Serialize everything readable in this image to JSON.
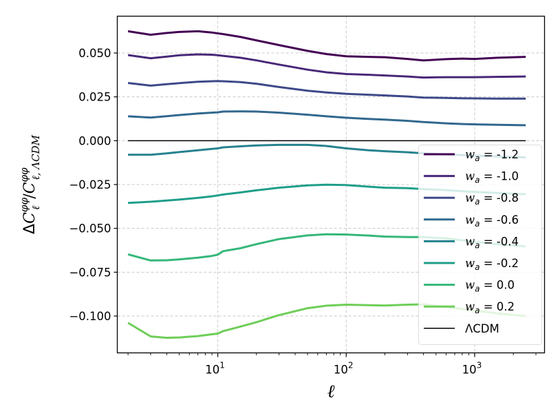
{
  "chart_data": {
    "type": "line",
    "title": "",
    "xlabel": "ℓ",
    "ylabel": "ΔC_ℓ^{φφ}/C_{ℓ,ΛCDM}^{φφ}",
    "ylabel_parts": {
      "delta": "Δ",
      "c1": "C",
      "sup1": "φφ",
      "sub1": "ℓ",
      "slash": "/",
      "c2": "C",
      "sup2": "φφ",
      "sub2": "ℓ, ΛCDM"
    },
    "xscale": "log",
    "xlim": [
      1.65,
      3500
    ],
    "ylim": [
      -0.121,
      0.071
    ],
    "grid": true,
    "legend_position": "lower-right",
    "x_ticks": [
      {
        "value": 10,
        "base": "10",
        "exp": "1"
      },
      {
        "value": 100,
        "base": "10",
        "exp": "2"
      },
      {
        "value": 1000,
        "base": "10",
        "exp": "3"
      }
    ],
    "y_ticks": [
      {
        "value": 0.05,
        "label": "0.050"
      },
      {
        "value": 0.025,
        "label": "0.025"
      },
      {
        "value": 0.0,
        "label": "0.000"
      },
      {
        "value": -0.025,
        "label": "−0.025"
      },
      {
        "value": -0.05,
        "label": "−0.050"
      },
      {
        "value": -0.075,
        "label": "−0.075"
      },
      {
        "value": -0.1,
        "label": "−0.100"
      }
    ],
    "x": [
      2,
      3,
      4,
      5,
      7,
      9,
      10,
      11,
      15,
      20,
      30,
      50,
      70,
      100,
      150,
      200,
      300,
      400,
      600,
      800,
      1000,
      1500,
      2500
    ],
    "series": [
      {
        "name": "w_a = -1.2",
        "label_prefix": "w",
        "label_sub": "a",
        "label_value": " = -1.2",
        "color": "#440154",
        "values": [
          0.0624,
          0.0604,
          0.0614,
          0.062,
          0.0624,
          0.0617,
          0.0612,
          0.0608,
          0.0592,
          0.0572,
          0.0545,
          0.0512,
          0.0494,
          0.0481,
          0.0478,
          0.0476,
          0.0466,
          0.0458,
          0.0465,
          0.0468,
          0.0466,
          0.0473,
          0.0478
        ]
      },
      {
        "name": "w_a = -1.0",
        "label_prefix": "w",
        "label_sub": "a",
        "label_value": " = -1.0",
        "color": "#482878",
        "values": [
          0.0488,
          0.047,
          0.0479,
          0.0487,
          0.0492,
          0.049,
          0.0487,
          0.0484,
          0.0473,
          0.0458,
          0.0434,
          0.0405,
          0.039,
          0.038,
          0.0376,
          0.0372,
          0.0366,
          0.036,
          0.0362,
          0.0362,
          0.0362,
          0.0364,
          0.0366
        ]
      },
      {
        "name": "w_a = -0.8",
        "label_prefix": "w",
        "label_sub": "a",
        "label_value": " = -0.8",
        "color": "#3e4989",
        "values": [
          0.0329,
          0.0314,
          0.0322,
          0.0328,
          0.0336,
          0.0339,
          0.034,
          0.0339,
          0.0334,
          0.0325,
          0.0306,
          0.0285,
          0.0275,
          0.0267,
          0.0262,
          0.0258,
          0.0252,
          0.0246,
          0.0244,
          0.0242,
          0.0241,
          0.024,
          0.024
        ]
      },
      {
        "name": "w_a = -0.6",
        "label_prefix": "w",
        "label_sub": "a",
        "label_value": " = -0.6",
        "color": "#31688e",
        "values": [
          0.0139,
          0.0132,
          0.014,
          0.0146,
          0.0155,
          0.016,
          0.0162,
          0.0166,
          0.0167,
          0.0166,
          0.016,
          0.0148,
          0.0139,
          0.0131,
          0.0124,
          0.012,
          0.0113,
          0.0106,
          0.0099,
          0.0095,
          0.0093,
          0.0091,
          0.0088
        ]
      },
      {
        "name": "w_a = -0.4",
        "label_prefix": "w",
        "label_sub": "a",
        "label_value": " = -0.4",
        "color": "#26828e",
        "values": [
          -0.008,
          -0.008,
          -0.0072,
          -0.0065,
          -0.0055,
          -0.0047,
          -0.0044,
          -0.0038,
          -0.0032,
          -0.0027,
          -0.0024,
          -0.0024,
          -0.003,
          -0.0044,
          -0.0055,
          -0.006,
          -0.0066,
          -0.0072,
          -0.0078,
          -0.0082,
          -0.0085,
          -0.009,
          -0.0095
        ]
      },
      {
        "name": "w_a = -0.2",
        "label_prefix": "w",
        "label_sub": "a",
        "label_value": " = -0.2",
        "color": "#1f9e89",
        "values": [
          -0.0355,
          -0.0348,
          -0.0341,
          -0.0336,
          -0.0326,
          -0.0317,
          -0.0312,
          -0.0307,
          -0.0295,
          -0.0283,
          -0.0268,
          -0.0255,
          -0.0251,
          -0.0253,
          -0.0262,
          -0.0268,
          -0.0271,
          -0.0276,
          -0.0282,
          -0.0288,
          -0.0292,
          -0.0298,
          -0.0305
        ]
      },
      {
        "name": "w_a = 0.0",
        "label_prefix": "w",
        "label_sub": "a",
        "label_value": " = 0.0",
        "color": "#35b779",
        "values": [
          -0.0648,
          -0.0683,
          -0.0682,
          -0.0677,
          -0.0667,
          -0.0657,
          -0.065,
          -0.063,
          -0.0613,
          -0.059,
          -0.0561,
          -0.054,
          -0.0534,
          -0.0535,
          -0.0541,
          -0.0547,
          -0.0549,
          -0.055,
          -0.0557,
          -0.0568,
          -0.0577,
          -0.059,
          -0.0603
        ]
      },
      {
        "name": "w_a = 0.2",
        "label_prefix": "w",
        "label_sub": "a",
        "label_value": " = 0.2",
        "color": "#6ece58",
        "values": [
          -0.1039,
          -0.1116,
          -0.1124,
          -0.1122,
          -0.1114,
          -0.1104,
          -0.11,
          -0.1086,
          -0.106,
          -0.1035,
          -0.0995,
          -0.0955,
          -0.0941,
          -0.0935,
          -0.0938,
          -0.094,
          -0.0935,
          -0.0933,
          -0.0948,
          -0.096,
          -0.0968,
          -0.0985,
          -0.1
        ]
      }
    ],
    "reference": {
      "name": "ΛCDM",
      "color": "#000000",
      "values": [
        0,
        0
      ]
    }
  }
}
